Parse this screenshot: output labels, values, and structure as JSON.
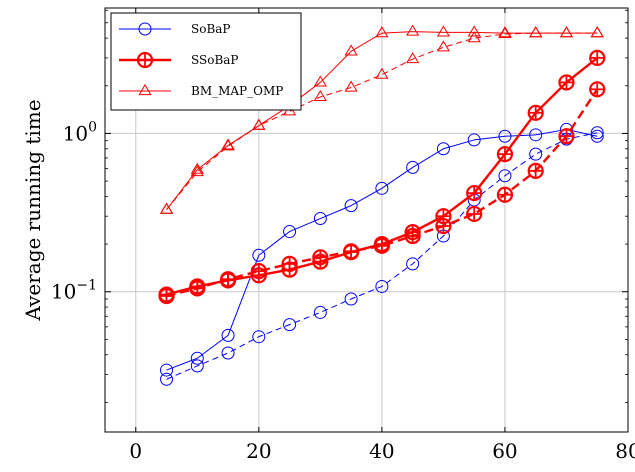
{
  "chart_data": {
    "type": "line",
    "title": "",
    "xlabel": "",
    "ylabel": "Average running time",
    "xlim": [
      -5,
      80
    ],
    "ylim": [
      0.013,
      6.2
    ],
    "yscale": "log",
    "grid": true,
    "legend_position": "top-left",
    "x_ticks": [
      0,
      20,
      40,
      60,
      80
    ],
    "x_tick_labels": [
      "0",
      "20",
      "40",
      "60",
      "80"
    ],
    "y_ticks": [
      0.1,
      1
    ],
    "y_tick_labels": [
      {
        "base": "10",
        "exp": "−1"
      },
      {
        "base": "10",
        "exp": "0"
      }
    ],
    "x": [
      5,
      10,
      15,
      20,
      25,
      30,
      35,
      40,
      45,
      50,
      55,
      60,
      65,
      70,
      75
    ],
    "series": [
      {
        "name": "SoBaP",
        "color": "#0000ff",
        "style": "solid",
        "width": 1,
        "marker": "circle",
        "marker_size": 6,
        "values": [
          0.032,
          0.038,
          0.053,
          0.17,
          0.24,
          0.29,
          0.35,
          0.45,
          0.61,
          0.8,
          0.91,
          0.96,
          0.98,
          1.06,
          0.96
        ]
      },
      {
        "name": "",
        "color": "#0000ff",
        "style": "dashed",
        "width": 1,
        "marker": "circle",
        "marker_size": 6,
        "values": [
          0.028,
          0.034,
          0.041,
          0.052,
          0.062,
          0.074,
          0.09,
          0.108,
          0.15,
          0.225,
          0.38,
          0.54,
          0.74,
          0.92,
          1.01
        ]
      },
      {
        "name": "SSoBaP",
        "color": "#ff0000",
        "style": "solid",
        "width": 2.4,
        "marker": "circle",
        "marker_size": 7,
        "values": [
          0.096,
          0.108,
          0.118,
          0.127,
          0.138,
          0.155,
          0.178,
          0.2,
          0.238,
          0.3,
          0.42,
          0.74,
          1.35,
          2.1,
          3.0
        ]
      },
      {
        "name": "",
        "color": "#ff0000",
        "style": "dashed",
        "width": 2.4,
        "marker": "circle",
        "marker_size": 7,
        "values": [
          0.094,
          0.105,
          0.12,
          0.135,
          0.15,
          0.165,
          0.18,
          0.195,
          0.225,
          0.26,
          0.31,
          0.41,
          0.58,
          0.96,
          1.9
        ]
      },
      {
        "name": "BM_MAP_OMP",
        "color": "#ff0000",
        "style": "solid",
        "width": 1,
        "marker": "triangle",
        "marker_size": 6,
        "values": [
          0.33,
          0.59,
          0.84,
          1.12,
          1.5,
          2.1,
          3.3,
          4.3,
          4.4,
          4.35,
          4.35,
          4.3,
          4.3,
          4.3,
          4.3
        ]
      },
      {
        "name": "",
        "color": "#ff0000",
        "style": "dashed",
        "width": 1,
        "marker": "triangle",
        "marker_size": 6,
        "values": [
          0.33,
          0.57,
          0.83,
          1.12,
          1.38,
          1.7,
          1.95,
          2.35,
          2.95,
          3.5,
          4.0,
          4.25,
          4.3,
          4.3,
          4.3
        ]
      }
    ]
  }
}
